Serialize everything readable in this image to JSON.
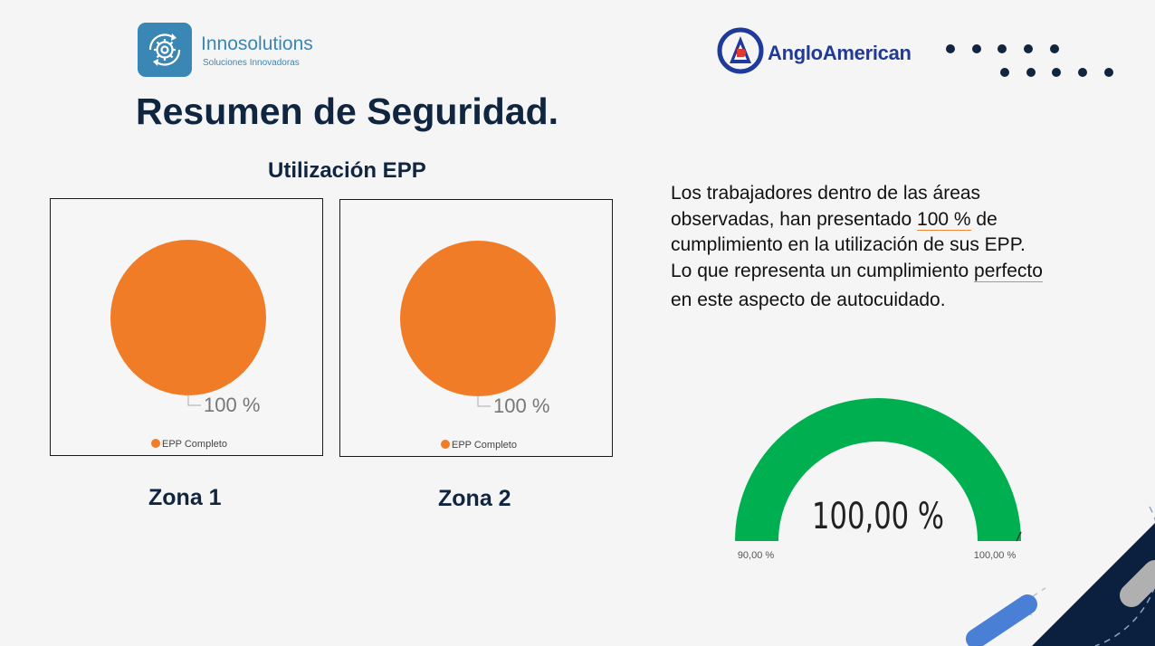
{
  "brand_left": {
    "name": "Innosolutions",
    "tagline": "Soluciones Innovadoras",
    "icon": "gear-refresh-icon",
    "color": "#3a87b5"
  },
  "brand_right": {
    "name": "AngloAmerican",
    "icon": "anglo-american-logo-icon",
    "color": "#1f3a9a"
  },
  "page_title": "Resumen de Seguridad.",
  "section_title": "Utilización EPP",
  "summary": {
    "line1": "Los trabajadores dentro de las áreas",
    "line2_pre": "observadas, han presentado ",
    "line2_hl": "100 %",
    "line2_post": " de",
    "line3": "cumplimiento en la utilización de sus EPP.",
    "line4_pre": "Lo que representa un cumplimiento ",
    "line4_hl": "perfecto",
    "line5": "en este aspecto de autocuidado."
  },
  "colors": {
    "pie": "#f07c28",
    "gauge": "#00b050",
    "title": "#0f2540",
    "corner_navy": "#0b1f3f",
    "corner_blue": "#4a7fd6"
  },
  "chart_data": [
    {
      "type": "pie",
      "id": "zone1",
      "title": "Zona 1",
      "categories": [
        "EPP Completo"
      ],
      "values": [
        100
      ],
      "data_label": "100 %",
      "legend": [
        "EPP Completo"
      ]
    },
    {
      "type": "pie",
      "id": "zone2",
      "title": "Zona 2",
      "categories": [
        "EPP Completo"
      ],
      "values": [
        100
      ],
      "data_label": "100 %",
      "legend": [
        "EPP Completo"
      ]
    },
    {
      "type": "gauge",
      "id": "compliance",
      "value": 100,
      "value_label": "100,00 %",
      "min": 90,
      "max": 100,
      "min_label": "90,00 %",
      "max_label": "100,00 %"
    }
  ]
}
